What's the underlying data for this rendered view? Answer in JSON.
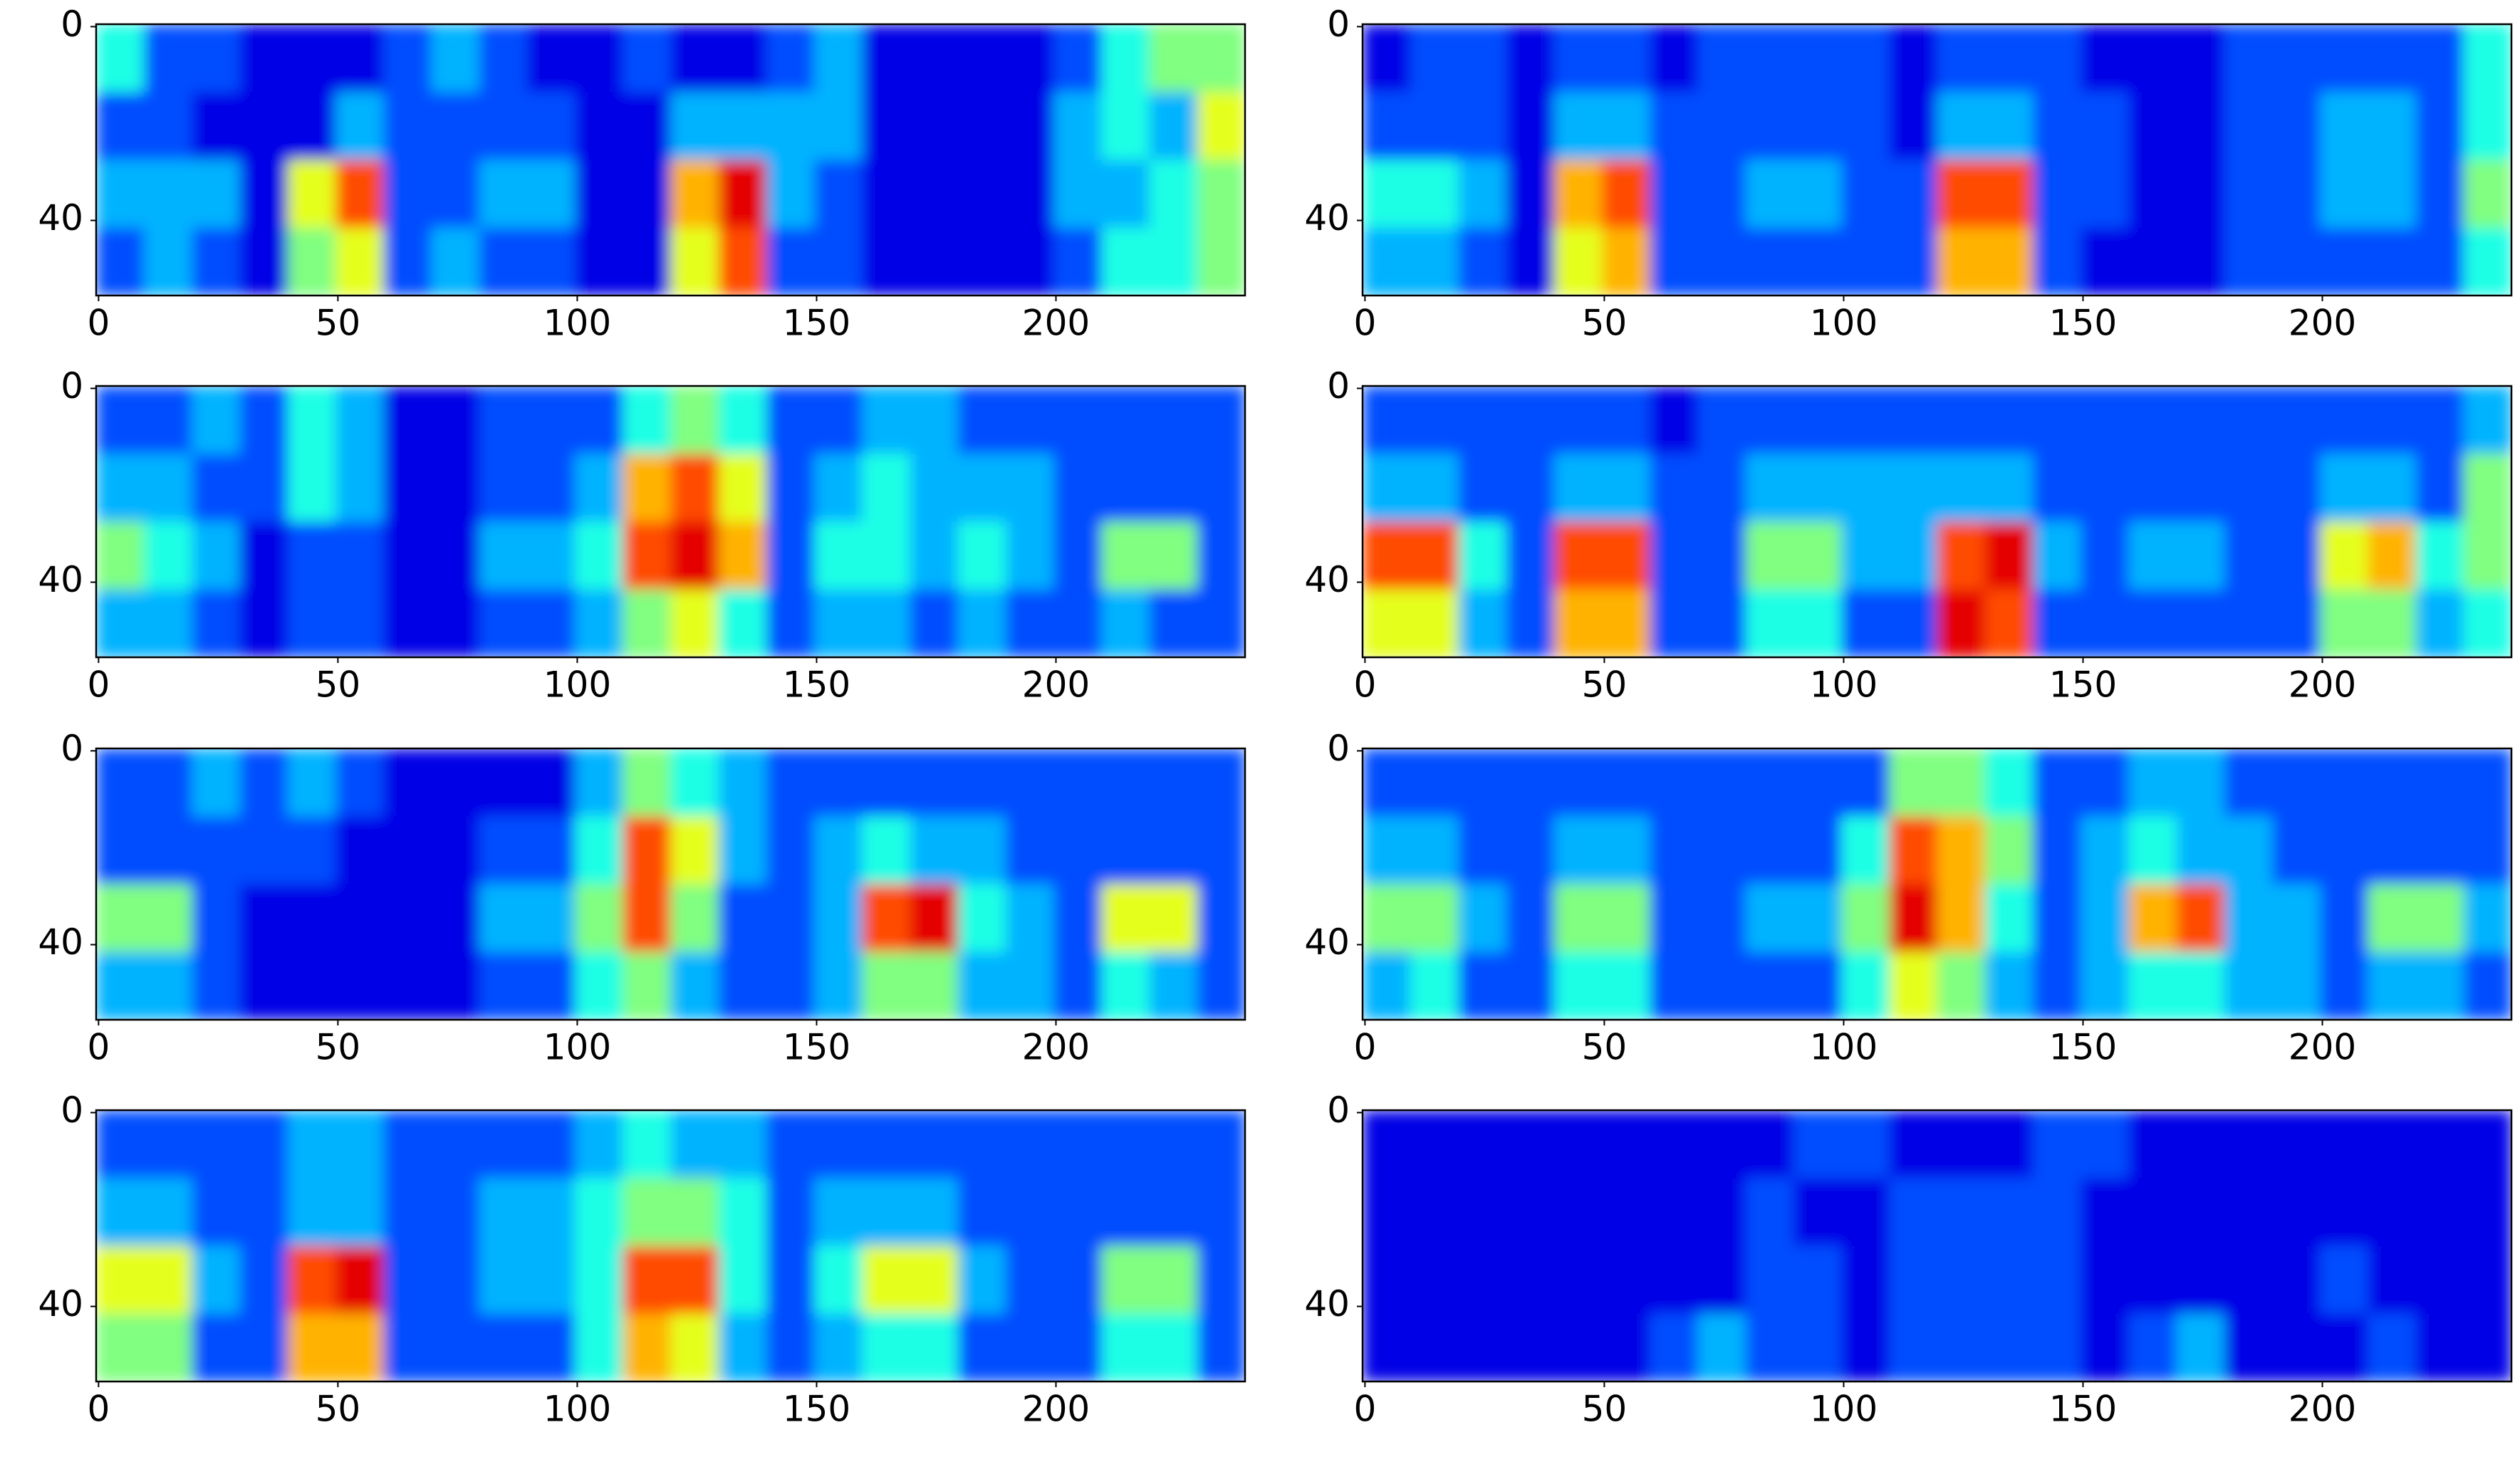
{
  "chart_data": [
    {
      "type": "heatmap",
      "colormap": "jet",
      "clim": [
        0,
        10
      ],
      "xlim": [
        -0.5,
        239.5
      ],
      "ylim": [
        55.5,
        -0.5
      ],
      "xticks": [
        0,
        50,
        100,
        150,
        200
      ],
      "yticks": [
        0,
        40
      ],
      "xbins": [
        -0.5,
        9.5,
        19.5,
        29.5,
        39.5,
        49.5,
        59.5,
        69.5,
        79.5,
        89.5,
        99.5,
        109.5,
        119.5,
        129.5,
        139.5,
        149.5,
        159.5,
        169.5,
        179.5,
        189.5,
        199.5,
        209.5,
        219.5,
        229.5,
        239.5
      ],
      "ybins": [
        -0.5,
        13.5,
        27.5,
        41.5,
        55.5
      ],
      "values": [
        [
          4,
          2,
          2,
          1,
          1,
          1,
          2,
          3,
          2,
          1,
          1,
          2,
          1,
          1,
          2,
          3,
          1,
          1,
          1,
          1,
          2,
          4,
          5,
          5
        ],
        [
          2,
          2,
          1,
          1,
          1,
          3,
          2,
          2,
          2,
          2,
          1,
          1,
          3,
          3,
          3,
          3,
          1,
          1,
          1,
          1,
          3,
          4,
          3,
          6
        ],
        [
          3,
          3,
          3,
          1,
          6,
          8,
          2,
          2,
          3,
          3,
          1,
          1,
          7,
          9,
          3,
          2,
          1,
          1,
          1,
          1,
          3,
          3,
          4,
          5
        ],
        [
          2,
          3,
          2,
          1,
          5,
          6,
          2,
          3,
          2,
          2,
          1,
          1,
          6,
          8,
          2,
          2,
          1,
          1,
          1,
          1,
          2,
          4,
          4,
          5
        ]
      ]
    },
    {
      "type": "heatmap",
      "colormap": "jet",
      "clim": [
        0,
        10
      ],
      "xlim": [
        -0.5,
        239.5
      ],
      "ylim": [
        55.5,
        -0.5
      ],
      "xticks": [
        0,
        50,
        100,
        150,
        200
      ],
      "yticks": [
        0,
        40
      ],
      "xbins": [
        -0.5,
        9.5,
        19.5,
        29.5,
        39.5,
        49.5,
        59.5,
        69.5,
        79.5,
        89.5,
        99.5,
        109.5,
        119.5,
        129.5,
        139.5,
        149.5,
        159.5,
        169.5,
        179.5,
        189.5,
        199.5,
        209.5,
        219.5,
        229.5,
        239.5
      ],
      "ybins": [
        -0.5,
        13.5,
        27.5,
        41.5,
        55.5
      ],
      "values": [
        [
          1,
          2,
          2,
          1,
          2,
          2,
          1,
          2,
          2,
          2,
          2,
          1,
          2,
          2,
          2,
          1,
          1,
          1,
          2,
          2,
          2,
          2,
          2,
          4
        ],
        [
          2,
          2,
          2,
          1,
          3,
          3,
          2,
          2,
          2,
          2,
          2,
          1,
          3,
          3,
          2,
          2,
          1,
          1,
          2,
          2,
          3,
          3,
          2,
          4
        ],
        [
          4,
          4,
          3,
          1,
          7,
          8,
          2,
          2,
          3,
          3,
          2,
          2,
          8,
          8,
          2,
          2,
          1,
          1,
          2,
          2,
          3,
          3,
          2,
          5
        ],
        [
          3,
          3,
          2,
          1,
          6,
          7,
          2,
          2,
          2,
          2,
          2,
          2,
          7,
          7,
          2,
          1,
          1,
          1,
          2,
          2,
          2,
          2,
          2,
          4
        ]
      ]
    },
    {
      "type": "heatmap",
      "colormap": "jet",
      "clim": [
        0,
        10
      ],
      "xlim": [
        -0.5,
        239.5
      ],
      "ylim": [
        55.5,
        -0.5
      ],
      "xticks": [
        0,
        50,
        100,
        150,
        200
      ],
      "yticks": [
        0,
        40
      ],
      "xbins": [
        -0.5,
        9.5,
        19.5,
        29.5,
        39.5,
        49.5,
        59.5,
        69.5,
        79.5,
        89.5,
        99.5,
        109.5,
        119.5,
        129.5,
        139.5,
        149.5,
        159.5,
        169.5,
        179.5,
        189.5,
        199.5,
        209.5,
        219.5,
        229.5,
        239.5
      ],
      "ybins": [
        -0.5,
        13.5,
        27.5,
        41.5,
        55.5
      ],
      "values": [
        [
          2,
          2,
          3,
          2,
          4,
          3,
          1,
          1,
          2,
          2,
          2,
          4,
          5,
          4,
          2,
          2,
          3,
          3,
          2,
          2,
          2,
          2,
          2,
          2
        ],
        [
          3,
          3,
          2,
          2,
          4,
          3,
          1,
          1,
          2,
          2,
          3,
          7,
          8,
          6,
          2,
          3,
          4,
          3,
          3,
          3,
          2,
          2,
          2,
          2
        ],
        [
          5,
          4,
          3,
          1,
          2,
          2,
          1,
          1,
          3,
          3,
          4,
          8,
          9,
          7,
          2,
          4,
          4,
          3,
          4,
          3,
          2,
          5,
          5,
          2
        ],
        [
          3,
          3,
          2,
          1,
          2,
          2,
          1,
          1,
          2,
          2,
          3,
          5,
          6,
          4,
          2,
          3,
          3,
          2,
          3,
          2,
          2,
          3,
          2,
          2
        ]
      ]
    },
    {
      "type": "heatmap",
      "colormap": "jet",
      "clim": [
        0,
        10
      ],
      "xlim": [
        -0.5,
        239.5
      ],
      "ylim": [
        55.5,
        -0.5
      ],
      "xticks": [
        0,
        50,
        100,
        150,
        200
      ],
      "yticks": [
        0,
        40
      ],
      "xbins": [
        -0.5,
        9.5,
        19.5,
        29.5,
        39.5,
        49.5,
        59.5,
        69.5,
        79.5,
        89.5,
        99.5,
        109.5,
        119.5,
        129.5,
        139.5,
        149.5,
        159.5,
        169.5,
        179.5,
        189.5,
        199.5,
        209.5,
        219.5,
        229.5,
        239.5
      ],
      "ybins": [
        -0.5,
        13.5,
        27.5,
        41.5,
        55.5
      ],
      "values": [
        [
          2,
          2,
          2,
          2,
          2,
          2,
          1,
          2,
          2,
          2,
          2,
          2,
          2,
          2,
          2,
          2,
          2,
          2,
          2,
          2,
          2,
          2,
          2,
          3
        ],
        [
          3,
          3,
          2,
          2,
          3,
          3,
          2,
          2,
          3,
          3,
          3,
          3,
          3,
          3,
          2,
          2,
          2,
          2,
          2,
          2,
          3,
          3,
          2,
          5
        ],
        [
          8,
          8,
          4,
          2,
          8,
          8,
          2,
          2,
          5,
          5,
          3,
          3,
          8,
          9,
          3,
          2,
          3,
          3,
          2,
          2,
          6,
          7,
          4,
          5
        ],
        [
          6,
          6,
          3,
          2,
          7,
          7,
          2,
          2,
          4,
          4,
          2,
          2,
          9,
          8,
          2,
          2,
          2,
          2,
          2,
          2,
          5,
          5,
          3,
          4
        ]
      ]
    },
    {
      "type": "heatmap",
      "colormap": "jet",
      "clim": [
        0,
        10
      ],
      "xlim": [
        -0.5,
        239.5
      ],
      "ylim": [
        55.5,
        -0.5
      ],
      "xticks": [
        0,
        50,
        100,
        150,
        200
      ],
      "yticks": [
        0,
        40
      ],
      "xbins": [
        -0.5,
        9.5,
        19.5,
        29.5,
        39.5,
        49.5,
        59.5,
        69.5,
        79.5,
        89.5,
        99.5,
        109.5,
        119.5,
        129.5,
        139.5,
        149.5,
        159.5,
        169.5,
        179.5,
        189.5,
        199.5,
        209.5,
        219.5,
        229.5,
        239.5
      ],
      "ybins": [
        -0.5,
        13.5,
        27.5,
        41.5,
        55.5
      ],
      "values": [
        [
          2,
          2,
          3,
          2,
          3,
          2,
          1,
          1,
          1,
          1,
          3,
          5,
          4,
          3,
          2,
          2,
          2,
          2,
          2,
          2,
          2,
          2,
          2,
          2
        ],
        [
          2,
          2,
          2,
          2,
          2,
          1,
          1,
          1,
          2,
          2,
          4,
          8,
          6,
          3,
          2,
          3,
          4,
          3,
          3,
          2,
          2,
          2,
          2,
          2
        ],
        [
          5,
          5,
          2,
          1,
          1,
          1,
          1,
          1,
          3,
          3,
          5,
          8,
          5,
          2,
          2,
          3,
          8,
          9,
          4,
          3,
          2,
          6,
          6,
          2
        ],
        [
          3,
          3,
          2,
          1,
          1,
          1,
          1,
          1,
          2,
          2,
          4,
          5,
          3,
          2,
          2,
          3,
          5,
          5,
          3,
          3,
          2,
          4,
          3,
          2
        ]
      ]
    },
    {
      "type": "heatmap",
      "colormap": "jet",
      "clim": [
        0,
        10
      ],
      "xlim": [
        -0.5,
        239.5
      ],
      "ylim": [
        55.5,
        -0.5
      ],
      "xticks": [
        0,
        50,
        100,
        150,
        200
      ],
      "yticks": [
        0,
        40
      ],
      "xbins": [
        -0.5,
        9.5,
        19.5,
        29.5,
        39.5,
        49.5,
        59.5,
        69.5,
        79.5,
        89.5,
        99.5,
        109.5,
        119.5,
        129.5,
        139.5,
        149.5,
        159.5,
        169.5,
        179.5,
        189.5,
        199.5,
        209.5,
        219.5,
        229.5,
        239.5
      ],
      "ybins": [
        -0.5,
        13.5,
        27.5,
        41.5,
        55.5
      ],
      "values": [
        [
          2,
          2,
          2,
          2,
          2,
          2,
          2,
          2,
          2,
          2,
          2,
          5,
          5,
          4,
          2,
          2,
          3,
          3,
          2,
          2,
          2,
          2,
          2,
          2
        ],
        [
          3,
          3,
          2,
          2,
          3,
          3,
          2,
          2,
          2,
          2,
          4,
          8,
          7,
          5,
          2,
          3,
          4,
          3,
          3,
          2,
          2,
          2,
          2,
          2
        ],
        [
          5,
          5,
          3,
          2,
          5,
          5,
          2,
          2,
          3,
          3,
          5,
          9,
          7,
          4,
          2,
          3,
          7,
          8,
          3,
          3,
          2,
          5,
          5,
          3
        ],
        [
          3,
          4,
          2,
          2,
          4,
          4,
          2,
          2,
          2,
          2,
          4,
          6,
          5,
          3,
          2,
          3,
          4,
          4,
          3,
          3,
          2,
          3,
          3,
          2
        ]
      ]
    },
    {
      "type": "heatmap",
      "colormap": "jet",
      "clim": [
        0,
        10
      ],
      "xlim": [
        -0.5,
        239.5
      ],
      "ylim": [
        55.5,
        -0.5
      ],
      "xticks": [
        0,
        50,
        100,
        150,
        200
      ],
      "yticks": [
        0,
        40
      ],
      "xbins": [
        -0.5,
        9.5,
        19.5,
        29.5,
        39.5,
        49.5,
        59.5,
        69.5,
        79.5,
        89.5,
        99.5,
        109.5,
        119.5,
        129.5,
        139.5,
        149.5,
        159.5,
        169.5,
        179.5,
        189.5,
        199.5,
        209.5,
        219.5,
        229.5,
        239.5
      ],
      "ybins": [
        -0.5,
        13.5,
        27.5,
        41.5,
        55.5
      ],
      "values": [
        [
          2,
          2,
          2,
          2,
          3,
          3,
          2,
          2,
          2,
          2,
          3,
          4,
          3,
          3,
          2,
          2,
          2,
          2,
          2,
          2,
          2,
          2,
          2,
          2
        ],
        [
          3,
          3,
          2,
          2,
          3,
          3,
          2,
          2,
          3,
          3,
          4,
          5,
          5,
          4,
          2,
          3,
          3,
          3,
          2,
          2,
          2,
          2,
          2,
          2
        ],
        [
          6,
          6,
          3,
          2,
          8,
          9,
          2,
          2,
          3,
          3,
          4,
          8,
          8,
          4,
          2,
          4,
          6,
          6,
          3,
          2,
          2,
          5,
          5,
          2
        ],
        [
          5,
          5,
          2,
          2,
          7,
          7,
          2,
          2,
          2,
          2,
          4,
          7,
          6,
          3,
          2,
          3,
          4,
          4,
          2,
          2,
          2,
          4,
          4,
          2
        ]
      ]
    },
    {
      "type": "heatmap",
      "colormap": "jet",
      "clim": [
        0,
        10
      ],
      "xlim": [
        -0.5,
        239.5
      ],
      "ylim": [
        55.5,
        -0.5
      ],
      "xticks": [
        0,
        50,
        100,
        150,
        200
      ],
      "yticks": [
        0,
        40
      ],
      "xbins": [
        -0.5,
        9.5,
        19.5,
        29.5,
        39.5,
        49.5,
        59.5,
        69.5,
        79.5,
        89.5,
        99.5,
        109.5,
        119.5,
        129.5,
        139.5,
        149.5,
        159.5,
        169.5,
        179.5,
        189.5,
        199.5,
        209.5,
        219.5,
        229.5,
        239.5
      ],
      "ybins": [
        -0.5,
        13.5,
        27.5,
        41.5,
        55.5
      ],
      "values": [
        [
          1,
          1,
          1,
          1,
          1,
          1,
          1,
          1,
          1,
          2,
          2,
          1,
          1,
          1,
          2,
          2,
          1,
          1,
          1,
          1,
          1,
          1,
          1,
          1
        ],
        [
          1,
          1,
          1,
          1,
          1,
          1,
          1,
          1,
          2,
          1,
          1,
          2,
          2,
          2,
          2,
          1,
          1,
          1,
          1,
          1,
          1,
          1,
          1,
          1
        ],
        [
          1,
          1,
          1,
          1,
          1,
          1,
          1,
          1,
          2,
          2,
          1,
          2,
          2,
          2,
          2,
          1,
          1,
          1,
          1,
          1,
          2,
          1,
          1,
          1
        ],
        [
          1,
          1,
          1,
          1,
          1,
          1,
          2,
          3,
          2,
          2,
          1,
          2,
          2,
          2,
          2,
          1,
          2,
          3,
          1,
          1,
          1,
          2,
          1,
          1
        ]
      ]
    }
  ]
}
